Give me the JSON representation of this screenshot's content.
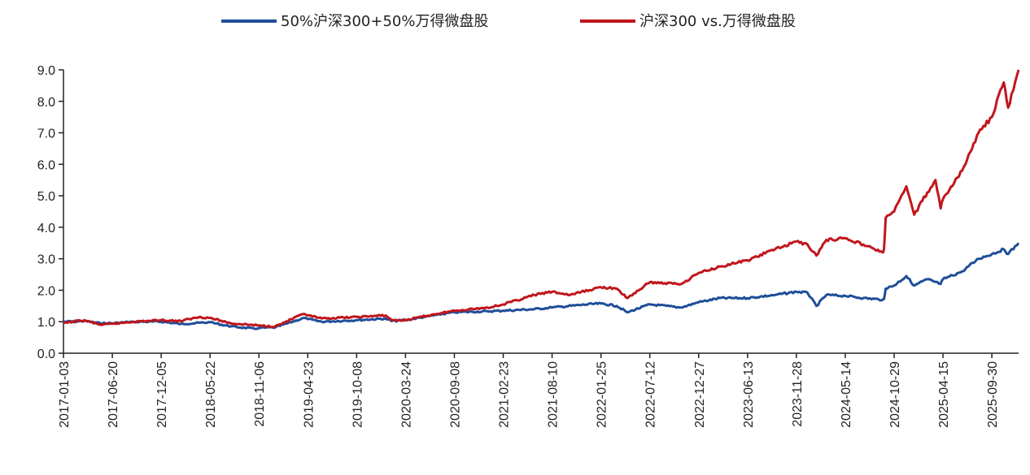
{
  "chart_data": {
    "type": "line",
    "title": "",
    "xlabel": "",
    "ylabel": "",
    "ylim": [
      0,
      9
    ],
    "yticks": [
      "0.0",
      "1.0",
      "2.0",
      "3.0",
      "4.0",
      "5.0",
      "6.0",
      "7.0",
      "8.0",
      "9.0"
    ],
    "xticks": [
      "2017-01-03",
      "2017-06-20",
      "2017-12-05",
      "2018-05-22",
      "2018-11-06",
      "2019-04-23",
      "2019-10-08",
      "2020-03-24",
      "2020-09-08",
      "2021-02-23",
      "2021-08-10",
      "2022-01-25",
      "2022-07-12",
      "2022-12-27",
      "2023-06-13",
      "2023-11-28",
      "2024-05-14",
      "2024-10-29",
      "2025-04-15",
      "2025-09-30"
    ],
    "xlim": [
      "2017-01-03",
      "2025-12-31"
    ],
    "grid": false,
    "legend_position": "top-center",
    "series": [
      {
        "name": "50%沪深300+50%万得微盘股",
        "color": "#1f4e99",
        "points": [
          [
            "2017-01-03",
            1.0
          ],
          [
            "2017-03-15",
            1.02
          ],
          [
            "2017-05-10",
            0.95
          ],
          [
            "2017-06-20",
            0.95
          ],
          [
            "2017-09-01",
            1.0
          ],
          [
            "2017-12-05",
            1.0
          ],
          [
            "2018-02-10",
            0.93
          ],
          [
            "2018-05-22",
            0.98
          ],
          [
            "2018-08-01",
            0.85
          ],
          [
            "2018-10-20",
            0.78
          ],
          [
            "2018-11-06",
            0.8
          ],
          [
            "2019-01-01",
            0.82
          ],
          [
            "2019-04-10",
            1.12
          ],
          [
            "2019-04-23",
            1.08
          ],
          [
            "2019-06-10",
            1.0
          ],
          [
            "2019-10-08",
            1.05
          ],
          [
            "2020-01-15",
            1.1
          ],
          [
            "2020-02-05",
            1.02
          ],
          [
            "2020-03-24",
            1.05
          ],
          [
            "2020-07-10",
            1.22
          ],
          [
            "2020-09-08",
            1.3
          ],
          [
            "2020-12-31",
            1.33
          ],
          [
            "2021-02-23",
            1.35
          ],
          [
            "2021-06-10",
            1.4
          ],
          [
            "2021-08-10",
            1.45
          ],
          [
            "2021-12-10",
            1.55
          ],
          [
            "2022-01-25",
            1.58
          ],
          [
            "2022-03-20",
            1.5
          ],
          [
            "2022-04-26",
            1.3
          ],
          [
            "2022-07-12",
            1.55
          ],
          [
            "2022-10-28",
            1.45
          ],
          [
            "2022-12-27",
            1.62
          ],
          [
            "2023-03-10",
            1.75
          ],
          [
            "2023-06-13",
            1.75
          ],
          [
            "2023-09-15",
            1.85
          ],
          [
            "2023-11-28",
            1.95
          ],
          [
            "2024-01-05",
            1.92
          ],
          [
            "2024-02-05",
            1.5
          ],
          [
            "2024-03-10",
            1.85
          ],
          [
            "2024-05-14",
            1.82
          ],
          [
            "2024-07-15",
            1.75
          ],
          [
            "2024-09-20",
            1.7
          ],
          [
            "2024-09-24",
            1.72
          ],
          [
            "2024-09-30",
            2.05
          ],
          [
            "2024-10-29",
            2.15
          ],
          [
            "2024-12-10",
            2.45
          ],
          [
            "2025-01-06",
            2.15
          ],
          [
            "2025-02-20",
            2.35
          ],
          [
            "2025-04-07",
            2.2
          ],
          [
            "2025-04-15",
            2.35
          ],
          [
            "2025-06-20",
            2.6
          ],
          [
            "2025-08-15",
            3.0
          ],
          [
            "2025-09-30",
            3.15
          ],
          [
            "2025-11-10",
            3.3
          ],
          [
            "2025-11-25",
            3.15
          ],
          [
            "2025-12-31",
            3.5
          ]
        ]
      },
      {
        "name": "沪深300 vs.万得微盘股",
        "color": "#c0161c",
        "points": [
          [
            "2017-01-03",
            0.95
          ],
          [
            "2017-03-15",
            1.05
          ],
          [
            "2017-05-10",
            0.9
          ],
          [
            "2017-06-20",
            0.93
          ],
          [
            "2017-09-01",
            1.0
          ],
          [
            "2017-12-05",
            1.05
          ],
          [
            "2018-02-10",
            1.02
          ],
          [
            "2018-04-15",
            1.15
          ],
          [
            "2018-05-22",
            1.12
          ],
          [
            "2018-08-01",
            0.95
          ],
          [
            "2018-11-06",
            0.88
          ],
          [
            "2019-01-01",
            0.85
          ],
          [
            "2019-04-10",
            1.25
          ],
          [
            "2019-04-23",
            1.2
          ],
          [
            "2019-06-10",
            1.1
          ],
          [
            "2019-10-08",
            1.15
          ],
          [
            "2020-01-15",
            1.2
          ],
          [
            "2020-02-05",
            1.05
          ],
          [
            "2020-03-24",
            1.05
          ],
          [
            "2020-07-10",
            1.25
          ],
          [
            "2020-09-08",
            1.35
          ],
          [
            "2020-12-31",
            1.45
          ],
          [
            "2021-02-23",
            1.55
          ],
          [
            "2021-06-10",
            1.85
          ],
          [
            "2021-08-10",
            1.95
          ],
          [
            "2021-10-10",
            1.85
          ],
          [
            "2022-01-25",
            2.1
          ],
          [
            "2022-03-20",
            2.05
          ],
          [
            "2022-04-26",
            1.75
          ],
          [
            "2022-07-12",
            2.25
          ],
          [
            "2022-10-28",
            2.2
          ],
          [
            "2022-12-27",
            2.55
          ],
          [
            "2023-03-10",
            2.75
          ],
          [
            "2023-06-13",
            2.95
          ],
          [
            "2023-09-15",
            3.3
          ],
          [
            "2023-11-28",
            3.55
          ],
          [
            "2024-01-05",
            3.45
          ],
          [
            "2024-02-05",
            3.1
          ],
          [
            "2024-03-10",
            3.6
          ],
          [
            "2024-05-14",
            3.65
          ],
          [
            "2024-07-15",
            3.45
          ],
          [
            "2024-09-20",
            3.2
          ],
          [
            "2024-09-24",
            3.3
          ],
          [
            "2024-09-30",
            4.3
          ],
          [
            "2024-10-29",
            4.5
          ],
          [
            "2024-12-10",
            5.3
          ],
          [
            "2025-01-06",
            4.4
          ],
          [
            "2025-02-20",
            5.1
          ],
          [
            "2025-03-20",
            5.5
          ],
          [
            "2025-04-07",
            4.6
          ],
          [
            "2025-04-15",
            4.9
          ],
          [
            "2025-06-20",
            5.8
          ],
          [
            "2025-08-15",
            7.0
          ],
          [
            "2025-09-30",
            7.5
          ],
          [
            "2025-11-10",
            8.6
          ],
          [
            "2025-11-25",
            7.8
          ],
          [
            "2025-12-31",
            9.0
          ]
        ]
      }
    ]
  }
}
